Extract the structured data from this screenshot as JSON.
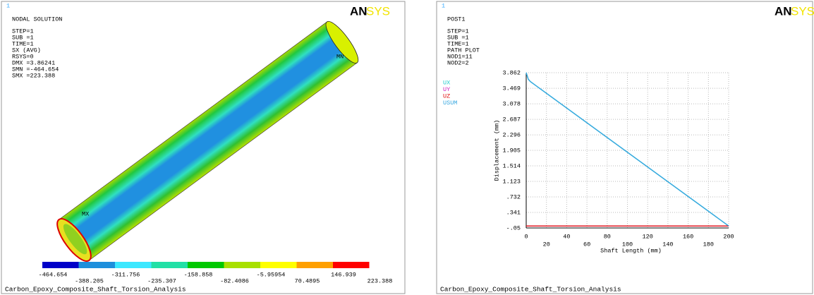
{
  "left_panel": {
    "window_number": "1",
    "logo": {
      "bold": "AN",
      "light": "SYS"
    },
    "info_lines": [
      "NODAL SOLUTION",
      "STEP=1",
      "SUB =1",
      "TIME=1",
      "SX       (AVG)",
      "RSYS=0",
      "DMX =3.86241",
      "SMN =-464.654",
      "SMX =223.388"
    ],
    "markers": [
      "MN",
      "MX"
    ],
    "contour_colors": [
      "#0000c8",
      "#1e8fdc",
      "#3ce8ff",
      "#22e0a6",
      "#00c800",
      "#a8e000",
      "#ffff00",
      "#ffa000",
      "#ff0000"
    ],
    "contour_values": [
      -464.654,
      -388.205,
      -311.756,
      -235.307,
      -158.858,
      -82.4086,
      -5.95954,
      70.4895,
      146.939,
      223.388
    ],
    "footer": "Carbon_Epoxy_Composite_Shaft_Torsion_Analysis"
  },
  "right_panel": {
    "window_number": "1",
    "logo": {
      "bold": "AN",
      "light": "SYS"
    },
    "info_lines": [
      "POST1",
      "STEP=1",
      "SUB =1",
      "TIME=1",
      "PATH PLOT",
      "NOD1=11",
      "NOD2=2"
    ],
    "footer": "Carbon_Epoxy_Composite_Shaft_Torsion_Analysis"
  },
  "chart_data": {
    "type": "line",
    "x_label": "Shaft Length (mm)",
    "y_label": "Displacement   (mm)",
    "x": [
      0,
      2,
      4,
      200
    ],
    "series": [
      {
        "name": "UX",
        "color": "#22cccc",
        "values": [
          3.862,
          3.7,
          3.64,
          0
        ]
      },
      {
        "name": "UY",
        "color": "#d020c0",
        "values": [
          0,
          0,
          0,
          0
        ]
      },
      {
        "name": "UZ",
        "color": "#e01010",
        "values": [
          0,
          0,
          0,
          0
        ]
      },
      {
        "name": "USUM",
        "color": "#3aa8e0",
        "values": [
          3.862,
          3.7,
          3.64,
          0
        ]
      }
    ],
    "xlim": [
      0,
      200
    ],
    "xticks": [
      0,
      20,
      40,
      60,
      80,
      100,
      120,
      140,
      160,
      180,
      200
    ],
    "ylim": [
      -0.05,
      3.862
    ],
    "yticks": [
      {
        "value": -0.05,
        "label": "-.05"
      },
      {
        "value": 0.341,
        "label": ".341"
      },
      {
        "value": 0.732,
        "label": ".732"
      },
      1.123,
      1.514,
      1.905,
      2.296,
      2.687,
      3.078,
      3.469,
      3.862
    ],
    "grid": true
  }
}
